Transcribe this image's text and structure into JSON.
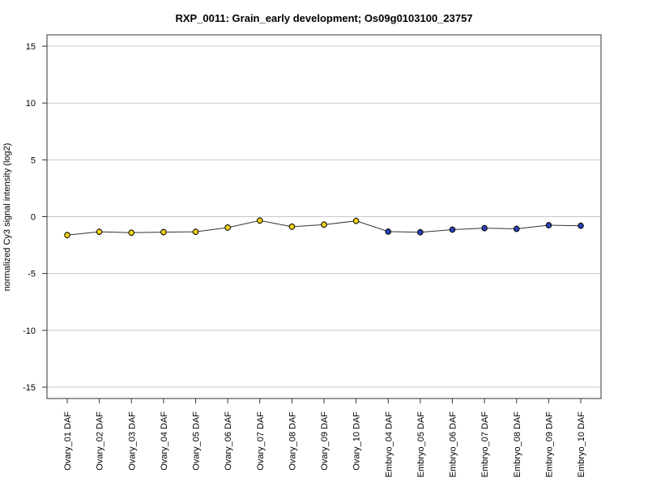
{
  "chart_data": {
    "type": "line",
    "title": "RXP_0011: Grain_early development; Os09g0103100_23757",
    "xlabel": "",
    "ylabel": "normalized Cy3 signal intensity (log2)",
    "ylim": [
      -16,
      16
    ],
    "yticks": [
      -15,
      -10,
      -5,
      0,
      5,
      10,
      15
    ],
    "grid": "horizontal",
    "legend": "none",
    "categories": [
      "Ovary_01 DAF",
      "Ovary_02 DAF",
      "Ovary_03 DAF",
      "Ovary_04 DAF",
      "Ovary_05 DAF",
      "Ovary_06 DAF",
      "Ovary_07 DAF",
      "Ovary_08 DAF",
      "Ovary_09 DAF",
      "Ovary_10 DAF",
      "Embryo_04 DAF",
      "Embryo_05 DAF",
      "Embryo_06 DAF",
      "Embryo_07 DAF",
      "Embryo_08 DAF",
      "Embryo_09 DAF",
      "Embryo_10 DAF"
    ],
    "values": [
      -1.62,
      -1.33,
      -1.41,
      -1.36,
      -1.33,
      -0.96,
      -0.34,
      -0.88,
      -0.7,
      -0.37,
      -1.31,
      -1.37,
      -1.14,
      -1.01,
      -1.07,
      -0.75,
      -0.8
    ],
    "point_colors": [
      "#f2d21b",
      "#f2d21b",
      "#f2d21b",
      "#f2d21b",
      "#f2d21b",
      "#f2d21b",
      "#f2d21b",
      "#f2d21b",
      "#f2d21b",
      "#f2d21b",
      "#2a43b8",
      "#2a43b8",
      "#2a43b8",
      "#2a43b8",
      "#2a43b8",
      "#2a43b8",
      "#2a43b8"
    ],
    "line_color": "#333333",
    "grid_color": "#c8c8c8"
  }
}
